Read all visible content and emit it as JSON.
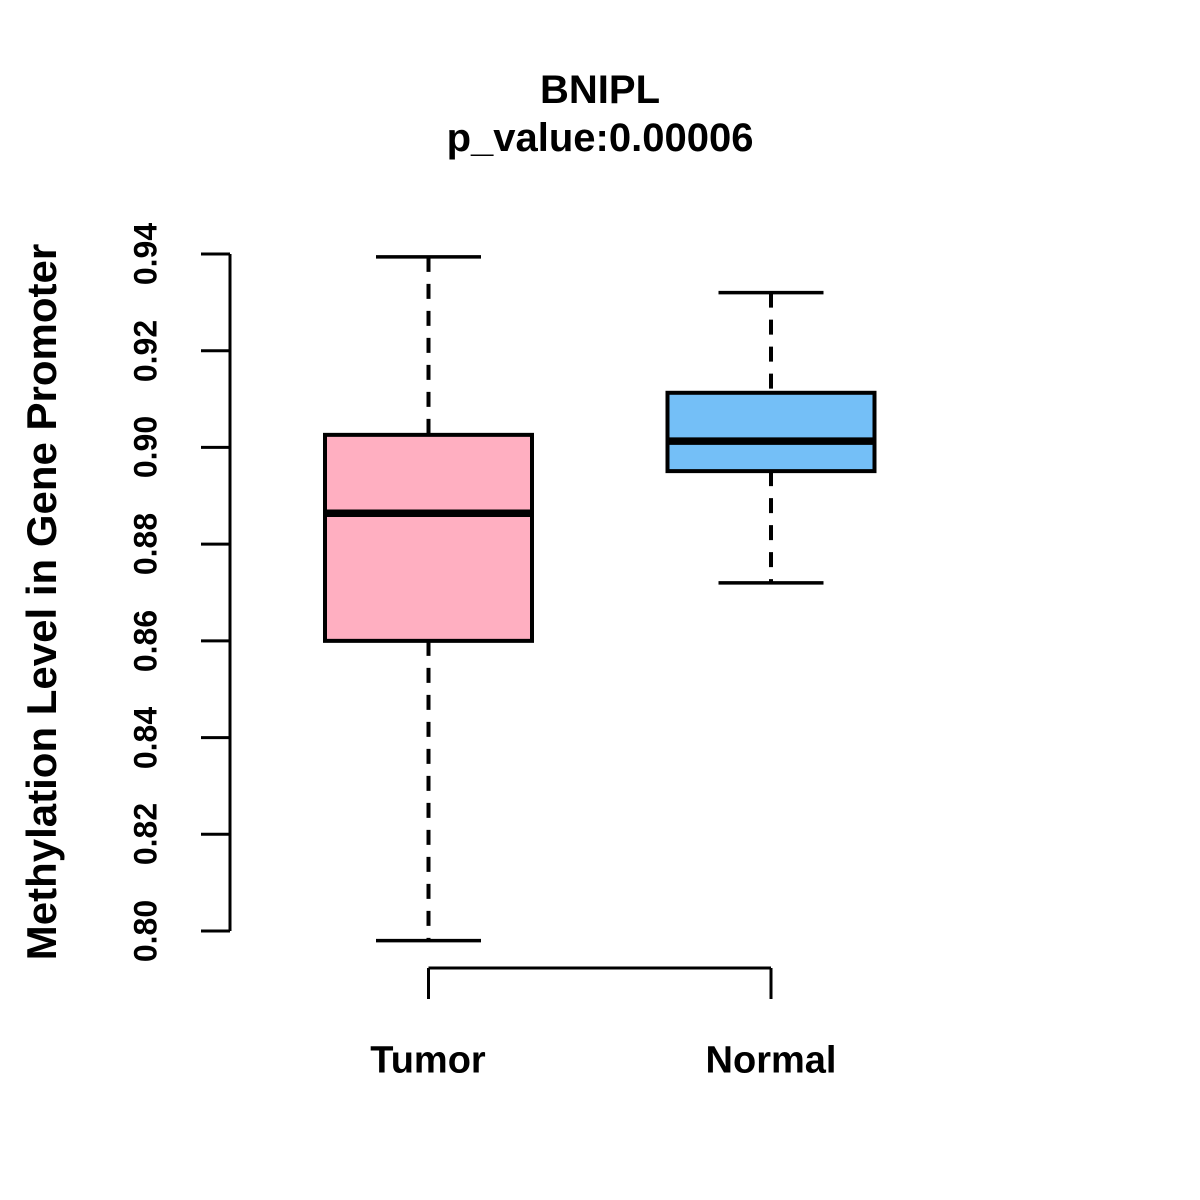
{
  "figure": {
    "background_color": "#FFFFFF",
    "line_color": "#000000"
  },
  "chart_data": {
    "type": "boxplot",
    "title": "BNIPL",
    "subtitle": "p_value:0.00006",
    "ylabel": "Methylation Level in Gene Promoter",
    "xlabel": "",
    "grid": "off",
    "legend": "none",
    "y_axis": {
      "min": 0.8,
      "max": 0.94,
      "tick_step": 0.02,
      "tick_labels": [
        "0.80",
        "0.82",
        "0.84",
        "0.86",
        "0.88",
        "0.90",
        "0.92",
        "0.94"
      ]
    },
    "groups": [
      {
        "label": "Tumor",
        "fill_color": "#FFAFC1",
        "border_color": "#000000",
        "whisker_low": 0.798,
        "q1": 0.86,
        "median": 0.8864,
        "q3": 0.9026,
        "whisker_high": 0.9394,
        "outliers": []
      },
      {
        "label": "Normal",
        "fill_color": "#74BFF7",
        "border_color": "#000000",
        "whisker_low": 0.872,
        "q1": 0.8951,
        "median": 0.9013,
        "q3": 0.9113,
        "whisker_high": 0.932,
        "outliers": []
      }
    ]
  }
}
